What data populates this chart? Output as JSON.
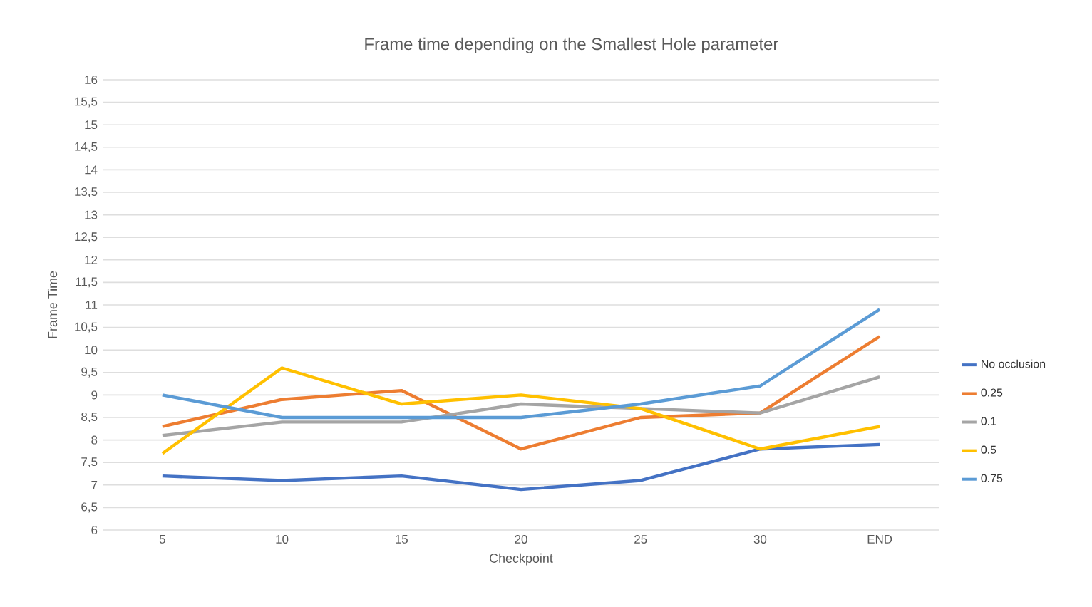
{
  "chart_data": {
    "type": "line",
    "title": "Frame time depending on the Smallest Hole parameter",
    "xlabel": "Checkpoint",
    "ylabel": "Frame Time",
    "categories": [
      "5",
      "10",
      "15",
      "20",
      "25",
      "30",
      "END"
    ],
    "series": [
      {
        "name": "No occlusion",
        "color": "#4472c4",
        "values": [
          7.2,
          7.1,
          7.2,
          6.9,
          7.1,
          7.8,
          7.9
        ]
      },
      {
        "name": "0.25",
        "color": "#ed7d31",
        "values": [
          8.3,
          8.9,
          9.1,
          7.8,
          8.5,
          8.6,
          10.3
        ]
      },
      {
        "name": "0.1",
        "color": "#a5a5a5",
        "values": [
          8.1,
          8.4,
          8.4,
          8.8,
          8.7,
          8.6,
          9.4
        ]
      },
      {
        "name": "0.5",
        "color": "#ffc000",
        "values": [
          7.7,
          9.6,
          8.8,
          9.0,
          8.7,
          7.8,
          8.3
        ]
      },
      {
        "name": "0.75",
        "color": "#5b9bd5",
        "values": [
          9.0,
          8.5,
          8.5,
          8.5,
          8.8,
          9.2,
          10.9
        ]
      }
    ],
    "ylim": [
      6,
      16
    ],
    "yticks": [
      6,
      {
        "value": 6.5,
        "label": "6,5"
      },
      7,
      {
        "value": 7.5,
        "label": "7,5"
      },
      8,
      {
        "value": 8.5,
        "label": "8,5"
      },
      9,
      {
        "value": 9.5,
        "label": "9,5"
      },
      10,
      {
        "value": 10.5,
        "label": "10,5"
      },
      11,
      {
        "value": 11.5,
        "label": "11,5"
      },
      12,
      {
        "value": 12.5,
        "label": "12,5"
      },
      13,
      {
        "value": 13.5,
        "label": "13,5"
      },
      14,
      {
        "value": 14.5,
        "label": "14,5"
      },
      15,
      {
        "value": 15.5,
        "label": "15,5"
      },
      16
    ],
    "grid": "y",
    "legend": "right",
    "marker": "none",
    "line_style": "solid"
  }
}
